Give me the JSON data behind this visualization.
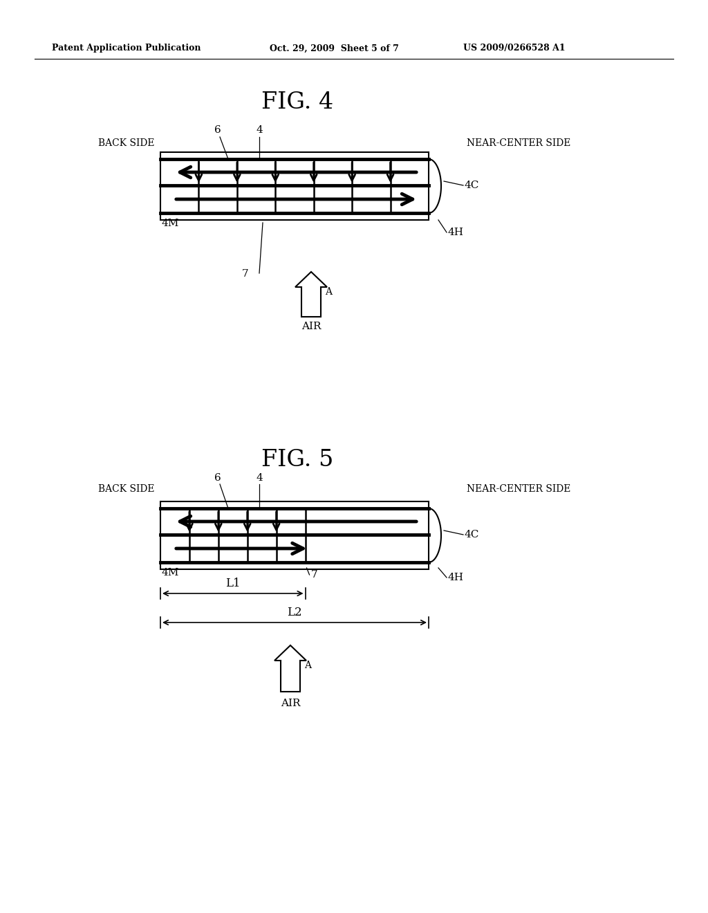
{
  "background_color": "#ffffff",
  "header_left": "Patent Application Publication",
  "header_mid": "Oct. 29, 2009  Sheet 5 of 7",
  "header_right": "US 2009/0266528 A1",
  "fig4_title": "FIG. 4",
  "fig5_title": "FIG. 5",
  "fig4": {
    "back_side": "BACK SIDE",
    "near_center": "NEAR-CENTER SIDE",
    "label6": "6",
    "label4": "4",
    "label4C": "4C",
    "label4M": "4M",
    "label4H": "4H",
    "label7": "7",
    "air": "AIR",
    "labelA": "A"
  },
  "fig5": {
    "back_side": "BACK SIDE",
    "near_center": "NEAR-CENTER SIDE",
    "label6": "6",
    "label4": "4",
    "label4C": "4C",
    "label4M": "4M",
    "label4H": "4H",
    "label7": "7",
    "air": "AIR",
    "labelA": "A",
    "L1": "L1",
    "L2": "L2"
  }
}
